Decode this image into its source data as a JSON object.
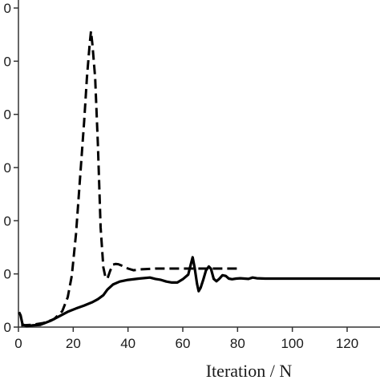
{
  "chart_data": {
    "type": "line",
    "xlabel": "Iteration / N",
    "ylabel": "",
    "xlim": [
      0,
      132
    ],
    "ylim": [
      0,
      96
    ],
    "x_ticks": [
      0,
      20,
      40,
      60,
      80,
      100,
      120
    ],
    "x_tick_labels": [
      "0",
      "20",
      "40",
      "60",
      "80",
      "100",
      "120"
    ],
    "y_ticks": [
      0,
      16,
      32,
      48,
      64,
      80,
      96
    ],
    "y_tick_labels": [
      "0",
      "0",
      "0",
      "0",
      "0",
      "0",
      "0"
    ],
    "grid": false,
    "series": [
      {
        "style": "solid",
        "color": "#000000",
        "points": [
          [
            0.2,
            4.5
          ],
          [
            0.8,
            3.5
          ],
          [
            1.5,
            0.8
          ],
          [
            3,
            0.3
          ],
          [
            5,
            0.5
          ],
          [
            8,
            0.7
          ],
          [
            12,
            2
          ],
          [
            15,
            3.3
          ],
          [
            18,
            4.6
          ],
          [
            21,
            5.6
          ],
          [
            24,
            6.5
          ],
          [
            27,
            7.5
          ],
          [
            29,
            8.4
          ],
          [
            31,
            9.6
          ],
          [
            32.5,
            11.3
          ],
          [
            34.5,
            12.8
          ],
          [
            37,
            13.7
          ],
          [
            40,
            14.2
          ],
          [
            44,
            14.6
          ],
          [
            48,
            14.9
          ],
          [
            50,
            14.5
          ],
          [
            52,
            14.2
          ],
          [
            54,
            13.7
          ],
          [
            56,
            13.4
          ],
          [
            58,
            13.4
          ],
          [
            60,
            14.4
          ],
          [
            62,
            15.8
          ],
          [
            62.8,
            18.5
          ],
          [
            63.6,
            21
          ],
          [
            64.3,
            18
          ],
          [
            65.2,
            13
          ],
          [
            65.8,
            10.8
          ],
          [
            66.5,
            11.8
          ],
          [
            67.5,
            14.3
          ],
          [
            68.5,
            17.1
          ],
          [
            69.5,
            18.2
          ],
          [
            70.3,
            17.5
          ],
          [
            71.3,
            14.5
          ],
          [
            72.3,
            13.8
          ],
          [
            73.3,
            14.5
          ],
          [
            74.5,
            15.6
          ],
          [
            75.7,
            15.4
          ],
          [
            76.8,
            14.6
          ],
          [
            78,
            14.4
          ],
          [
            79.5,
            14.6
          ],
          [
            81,
            14.7
          ],
          [
            82.5,
            14.6
          ],
          [
            84,
            14.5
          ],
          [
            85.5,
            14.9
          ],
          [
            87,
            14.7
          ],
          [
            90,
            14.6
          ],
          [
            100,
            14.6
          ],
          [
            110,
            14.6
          ],
          [
            120,
            14.6
          ],
          [
            132,
            14.6
          ]
        ]
      },
      {
        "style": "dashed",
        "color": "#000000",
        "points": [
          [
            1,
            0.5
          ],
          [
            5,
            0.7
          ],
          [
            9,
            1.2
          ],
          [
            13,
            2.4
          ],
          [
            16,
            4.8
          ],
          [
            18,
            9
          ],
          [
            19.5,
            15.5
          ],
          [
            21,
            28
          ],
          [
            22.5,
            45
          ],
          [
            24,
            62
          ],
          [
            25,
            75
          ],
          [
            26,
            85
          ],
          [
            26.5,
            89
          ],
          [
            27,
            85
          ],
          [
            28,
            75
          ],
          [
            29,
            55
          ],
          [
            30,
            30
          ],
          [
            31,
            18
          ],
          [
            31.8,
            14.8
          ],
          [
            32.5,
            14.6
          ],
          [
            33.5,
            17
          ],
          [
            34.5,
            18.8
          ],
          [
            35.5,
            19
          ],
          [
            36.5,
            18.9
          ],
          [
            38,
            18.4
          ],
          [
            40,
            17.6
          ],
          [
            42,
            17.1
          ],
          [
            45,
            17.4
          ],
          [
            50,
            17.6
          ],
          [
            60,
            17.6
          ],
          [
            70,
            17.6
          ],
          [
            80,
            17.6
          ]
        ]
      }
    ]
  }
}
